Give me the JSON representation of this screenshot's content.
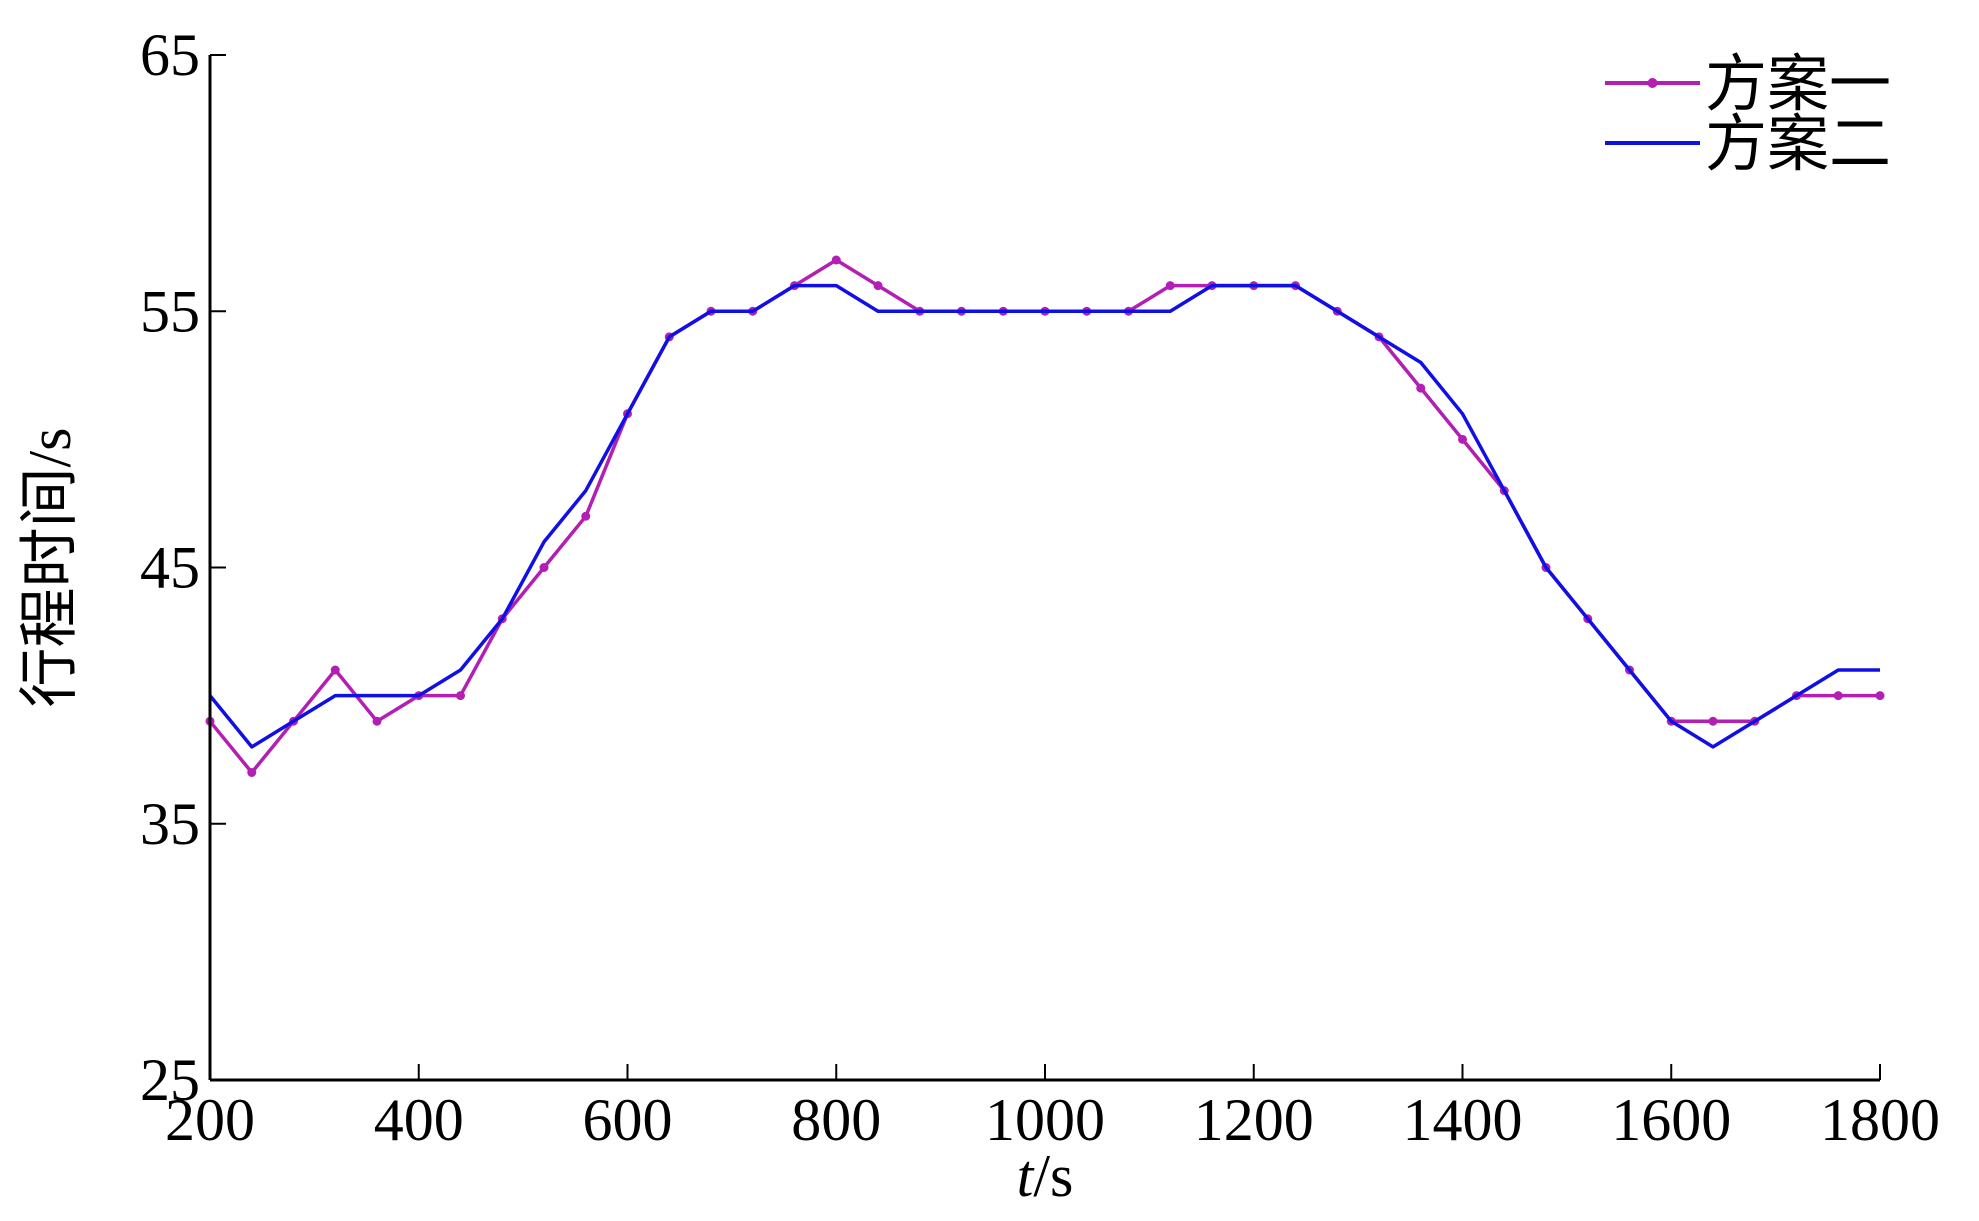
{
  "chart_data": {
    "type": "line",
    "xlabel_italic": "t",
    "xlabel_unit": "/s",
    "ylabel": "行程时间/s",
    "xlim": [
      200,
      1800
    ],
    "ylim": [
      25,
      65
    ],
    "xticks": [
      200,
      400,
      600,
      800,
      1000,
      1200,
      1400,
      1600,
      1800
    ],
    "yticks": [
      25,
      35,
      45,
      55,
      65
    ],
    "legend_position": "top-right",
    "grid": false,
    "series": [
      {
        "name": "方案一",
        "color": "#b21fb2",
        "marker": "dot",
        "x": [
          200,
          240,
          280,
          320,
          360,
          400,
          440,
          480,
          520,
          560,
          600,
          640,
          680,
          720,
          760,
          800,
          840,
          880,
          920,
          960,
          1000,
          1040,
          1080,
          1120,
          1160,
          1200,
          1240,
          1280,
          1320,
          1360,
          1400,
          1440,
          1480,
          1520,
          1560,
          1600,
          1640,
          1680,
          1720,
          1760,
          1800
        ],
        "y": [
          39,
          37,
          39,
          41,
          39,
          40,
          40,
          43,
          45,
          47,
          51,
          54,
          55,
          55,
          56,
          57,
          56,
          55,
          55,
          55,
          55,
          55,
          55,
          56,
          56,
          56,
          56,
          55,
          54,
          52,
          50,
          48,
          45,
          43,
          41,
          39,
          39,
          39,
          40,
          40,
          40
        ]
      },
      {
        "name": "方案二",
        "color": "#1010e6",
        "marker": "none",
        "x": [
          200,
          240,
          280,
          320,
          360,
          400,
          440,
          480,
          520,
          560,
          600,
          640,
          680,
          720,
          760,
          800,
          840,
          880,
          920,
          960,
          1000,
          1040,
          1080,
          1120,
          1160,
          1200,
          1240,
          1280,
          1320,
          1360,
          1400,
          1440,
          1480,
          1520,
          1560,
          1600,
          1640,
          1680,
          1720,
          1760,
          1800
        ],
        "y": [
          40,
          38,
          39,
          40,
          40,
          40,
          41,
          43,
          46,
          48,
          51,
          54,
          55,
          55,
          56,
          56,
          55,
          55,
          55,
          55,
          55,
          55,
          55,
          55,
          56,
          56,
          56,
          55,
          54,
          53,
          51,
          48,
          45,
          43,
          41,
          39,
          38,
          39,
          40,
          41,
          41
        ]
      }
    ]
  }
}
